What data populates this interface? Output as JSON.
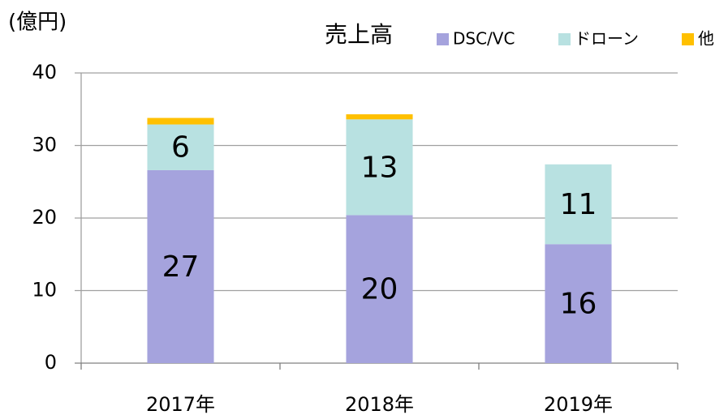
{
  "chart_data": {
    "type": "stacked_bar",
    "title": "売上高",
    "y_label": "(億円)",
    "categories": [
      "2017年",
      "2018年",
      "2019年"
    ],
    "series": [
      {
        "name": "DSC/VC",
        "color": "#a5a3dd",
        "values": [
          26.6,
          20.4,
          16.4
        ],
        "value_labels": [
          "27",
          "20",
          "16"
        ]
      },
      {
        "name": "ドローン",
        "color": "#b8e1e1",
        "values": [
          6.3,
          13.2,
          11.0
        ],
        "value_labels": [
          "6",
          "13",
          "11"
        ]
      },
      {
        "name": "他",
        "color": "#ffc000",
        "values": [
          0.9,
          0.7,
          0
        ]
      }
    ],
    "ylim": [
      0,
      40
    ],
    "yticks": [
      0,
      10,
      20,
      30,
      40
    ],
    "grid": true,
    "legend": "top-right"
  }
}
